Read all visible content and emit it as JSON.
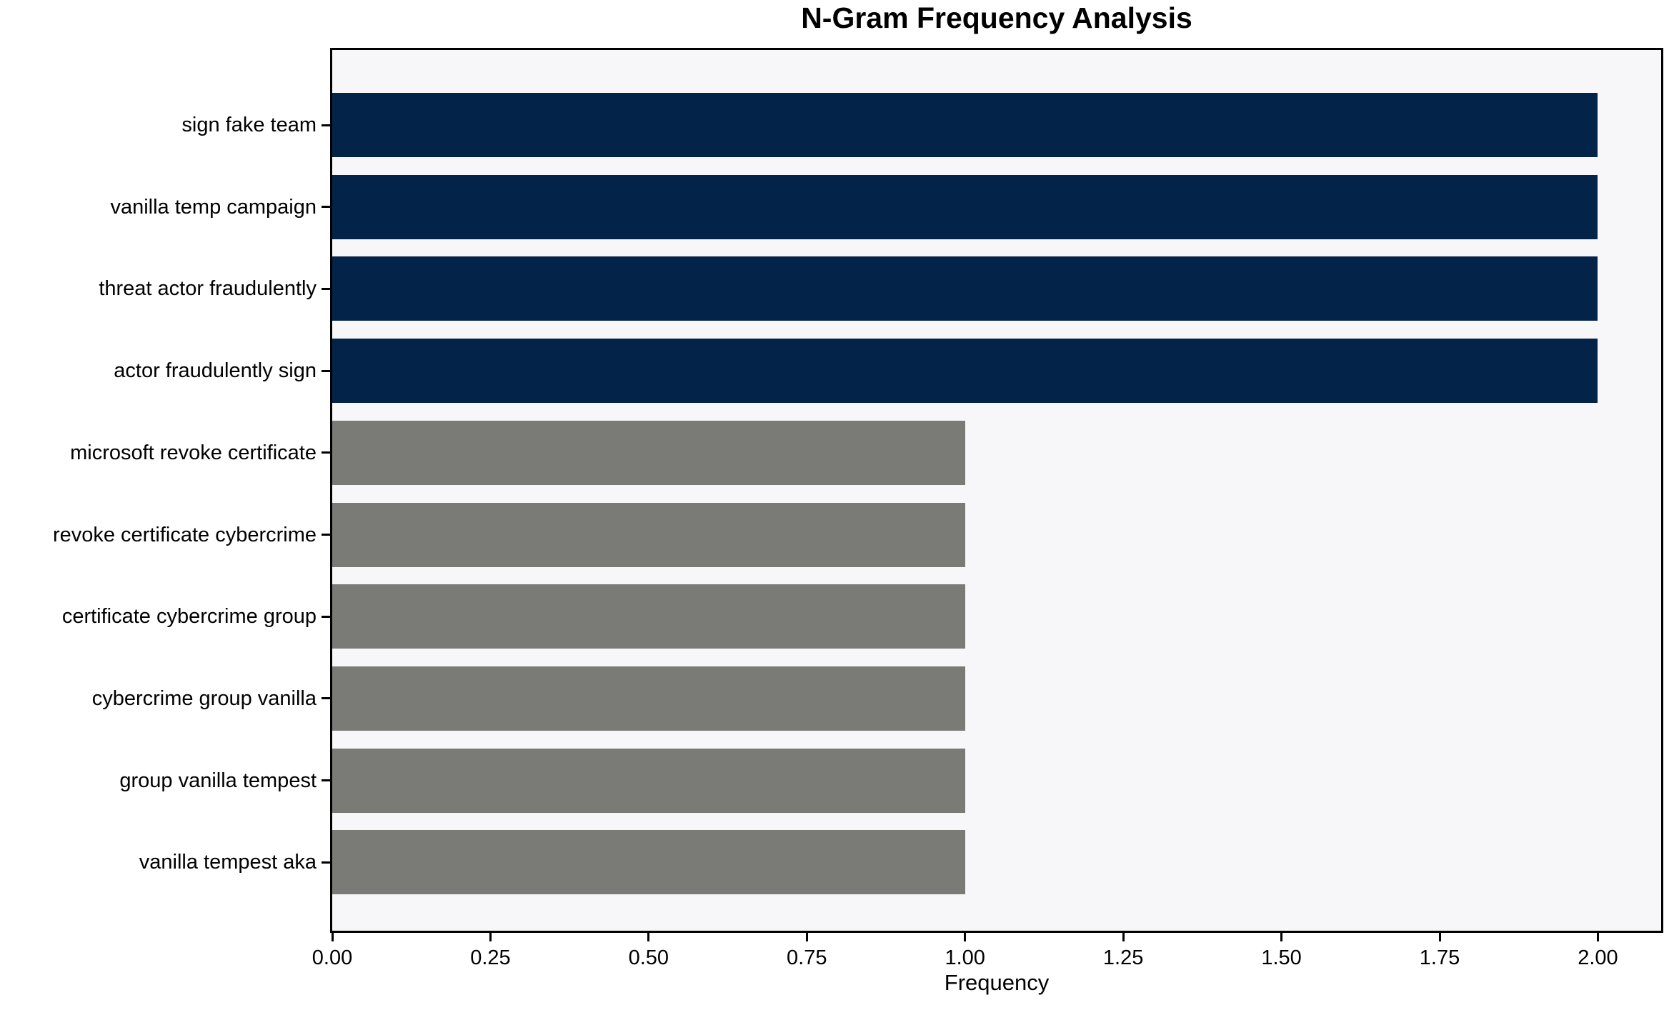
{
  "figure": {
    "background": "#ffffff",
    "plot_background": "#f7f7f9",
    "axis_color": "#000000"
  },
  "chart_data": {
    "type": "bar",
    "orientation": "horizontal",
    "title": "N-Gram Frequency Analysis",
    "xlabel": "Frequency",
    "ylabel": "",
    "categories": [
      "sign fake team",
      "vanilla temp campaign",
      "threat actor fraudulently",
      "actor fraudulently sign",
      "microsoft revoke certificate",
      "revoke certificate cybercrime",
      "certificate cybercrime group",
      "cybercrime group vanilla",
      "group vanilla tempest",
      "vanilla tempest aka"
    ],
    "values": [
      2,
      2,
      2,
      2,
      1,
      1,
      1,
      1,
      1,
      1
    ],
    "bar_colors": [
      "#032349",
      "#032349",
      "#032349",
      "#032349",
      "#7a7a76",
      "#7a7a76",
      "#7a7a76",
      "#7a7a76",
      "#7a7a76",
      "#7a7a76"
    ],
    "highlight_color": "#032349",
    "default_color": "#7a7a76",
    "xlim": [
      0,
      2.1
    ],
    "xticks": [
      0,
      0.25,
      0.5,
      0.75,
      1.0,
      1.25,
      1.5,
      1.75,
      2.0
    ],
    "xtick_labels": [
      "0.00",
      "0.25",
      "0.50",
      "0.75",
      "1.00",
      "1.25",
      "1.50",
      "1.75",
      "2.00"
    ],
    "grid": false,
    "legend": false
  }
}
